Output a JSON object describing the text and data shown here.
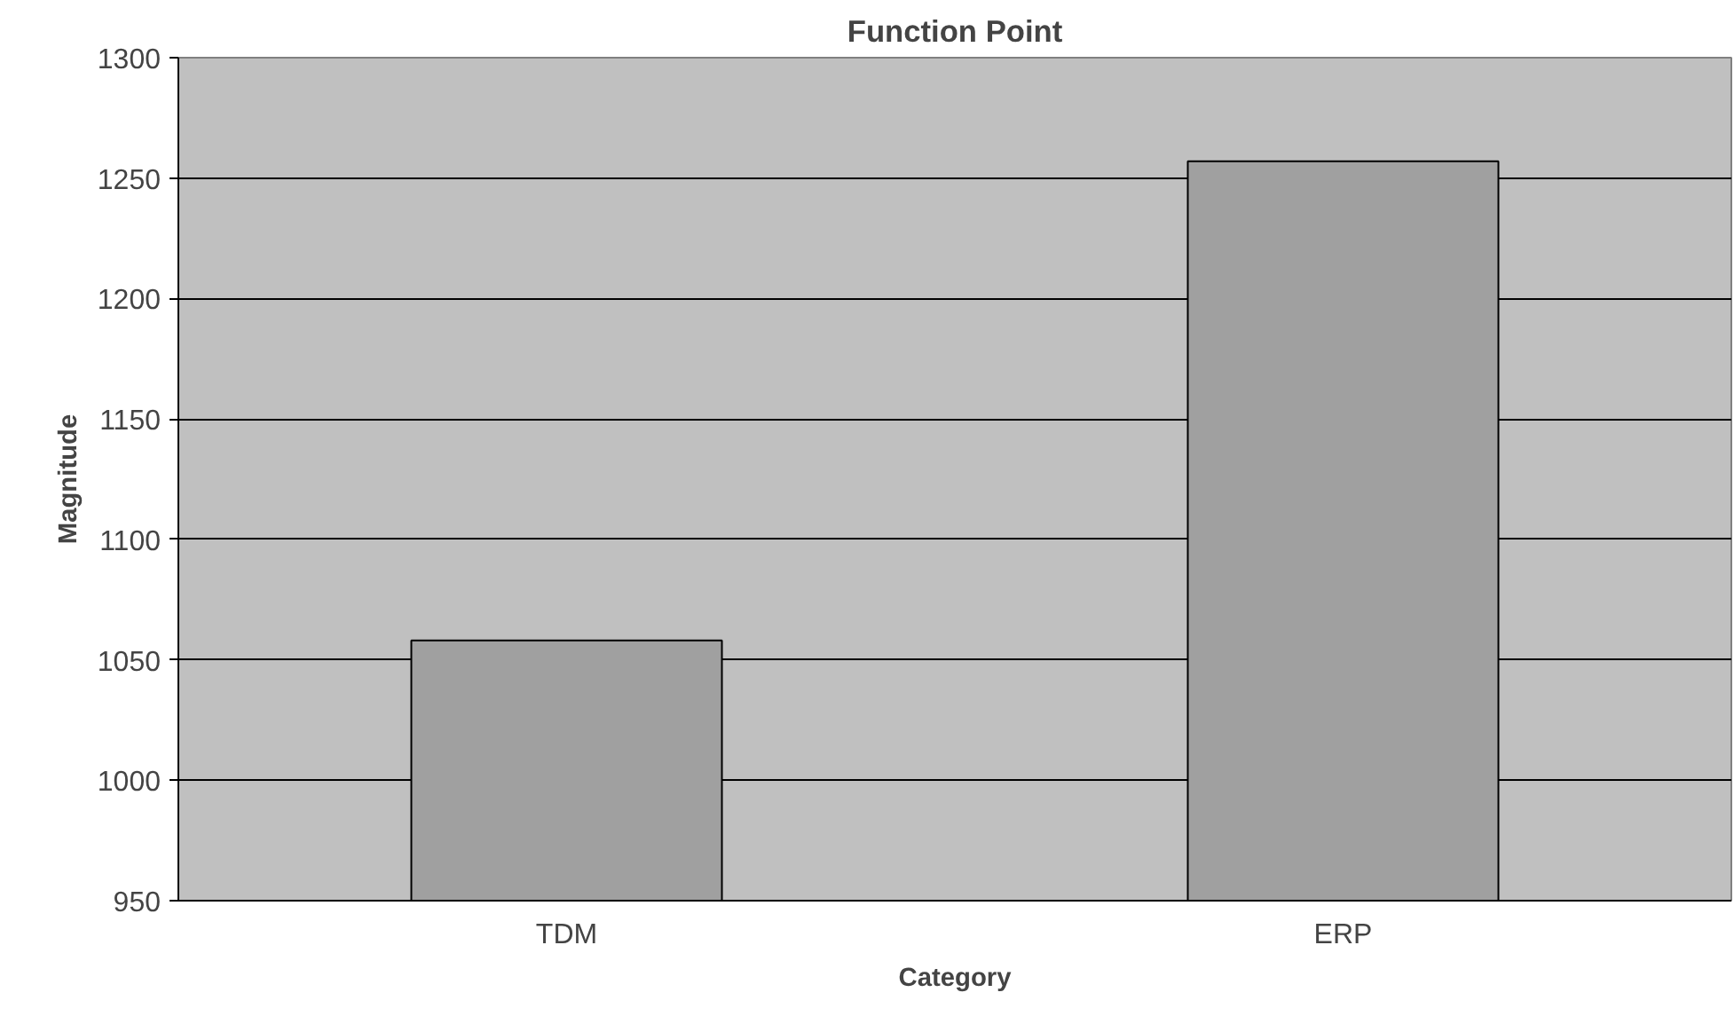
{
  "chart_data": {
    "type": "bar",
    "title": "Function Point",
    "xlabel": "Category",
    "ylabel": "Magnitude",
    "categories": [
      "TDM",
      "ERP"
    ],
    "values": [
      1058,
      1257
    ],
    "color": "#a0a0a0",
    "ylim": [
      950,
      1300
    ],
    "yticks": [
      950,
      1000,
      1050,
      1100,
      1150,
      1200,
      1250,
      1300
    ],
    "grid": "y"
  }
}
